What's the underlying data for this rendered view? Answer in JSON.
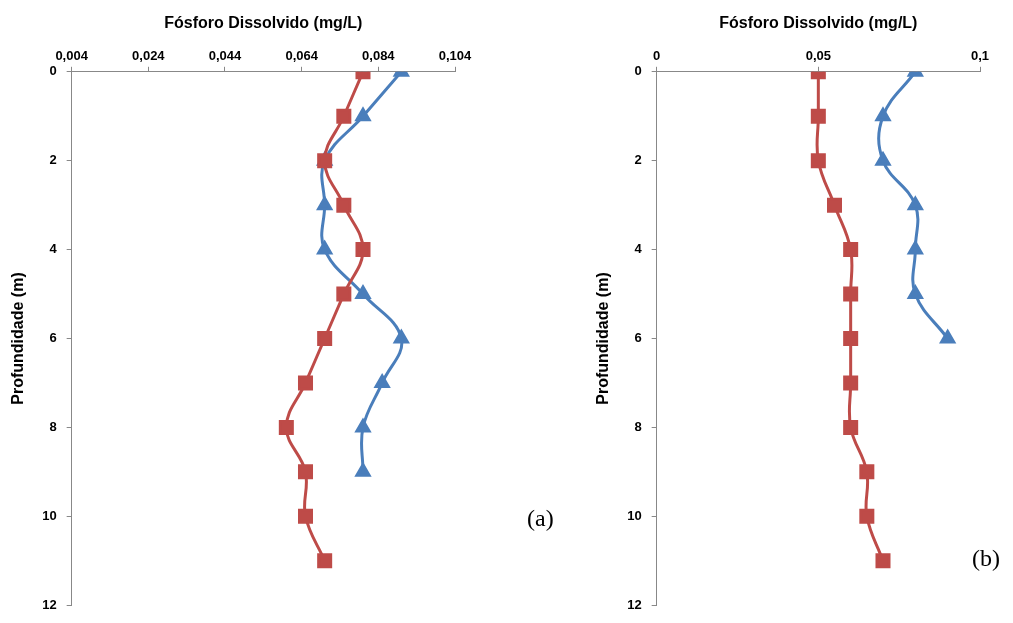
{
  "chart_data": [
    {
      "type": "line",
      "xlabel": "Fósforo Dissolvido (mg/L)",
      "ylabel": "Profundidade (m)",
      "xlim": [
        0.004,
        0.104
      ],
      "xticks": [
        {
          "value": 0.004,
          "label": "0,004"
        },
        {
          "value": 0.024,
          "label": "0,024"
        },
        {
          "value": 0.044,
          "label": "0,044"
        },
        {
          "value": 0.064,
          "label": "0,064"
        },
        {
          "value": 0.084,
          "label": "0,084"
        },
        {
          "value": 0.104,
          "label": "0,104"
        }
      ],
      "ylim": [
        12,
        0
      ],
      "yticks": [
        0,
        2,
        4,
        6,
        8,
        10,
        12
      ],
      "grid": false,
      "legend": false,
      "annotations": [
        "(a)"
      ],
      "series": [
        {
          "color": "#4a7ebb",
          "marker": "triangle",
          "x": [
            0.09,
            0.08,
            0.07,
            0.07,
            0.07,
            0.08,
            0.09,
            0.085,
            0.08,
            0.08
          ],
          "values": [
            0,
            1,
            2,
            3,
            4,
            5,
            6,
            7,
            8,
            9
          ]
        },
        {
          "color": "#be4b48",
          "marker": "square",
          "x": [
            0.08,
            0.075,
            0.07,
            0.075,
            0.08,
            0.075,
            0.07,
            0.065,
            0.06,
            0.065,
            0.065,
            0.07
          ],
          "values": [
            0,
            1,
            2,
            3,
            4,
            5,
            6,
            7,
            8,
            9,
            10,
            11
          ]
        }
      ]
    },
    {
      "type": "line",
      "xlabel": "Fósforo Dissolvido (mg/L)",
      "ylabel": "Profundidade (m)",
      "xlim": [
        0,
        0.1
      ],
      "xticks": [
        0,
        {
          "value": 0.05,
          "label": "0,05"
        },
        {
          "value": 0.1,
          "label": "0,1"
        }
      ],
      "ylim": [
        12,
        0
      ],
      "yticks": [
        0,
        2,
        4,
        6,
        8,
        10,
        12
      ],
      "grid": false,
      "legend": false,
      "annotations": [
        "(b)"
      ],
      "series": [
        {
          "color": "#4a7ebb",
          "marker": "triangle",
          "x": [
            0.08,
            0.07,
            0.07,
            0.08,
            0.08,
            0.08,
            0.09
          ],
          "values": [
            0,
            1,
            2,
            3,
            4,
            5,
            6
          ]
        },
        {
          "color": "#be4b48",
          "marker": "square",
          "x": [
            0.05,
            0.05,
            0.05,
            0.055,
            0.06,
            0.06,
            0.06,
            0.06,
            0.06,
            0.065,
            0.065,
            0.07
          ],
          "values": [
            0,
            1,
            2,
            3,
            4,
            5,
            6,
            7,
            8,
            9,
            10,
            11
          ]
        }
      ]
    }
  ]
}
